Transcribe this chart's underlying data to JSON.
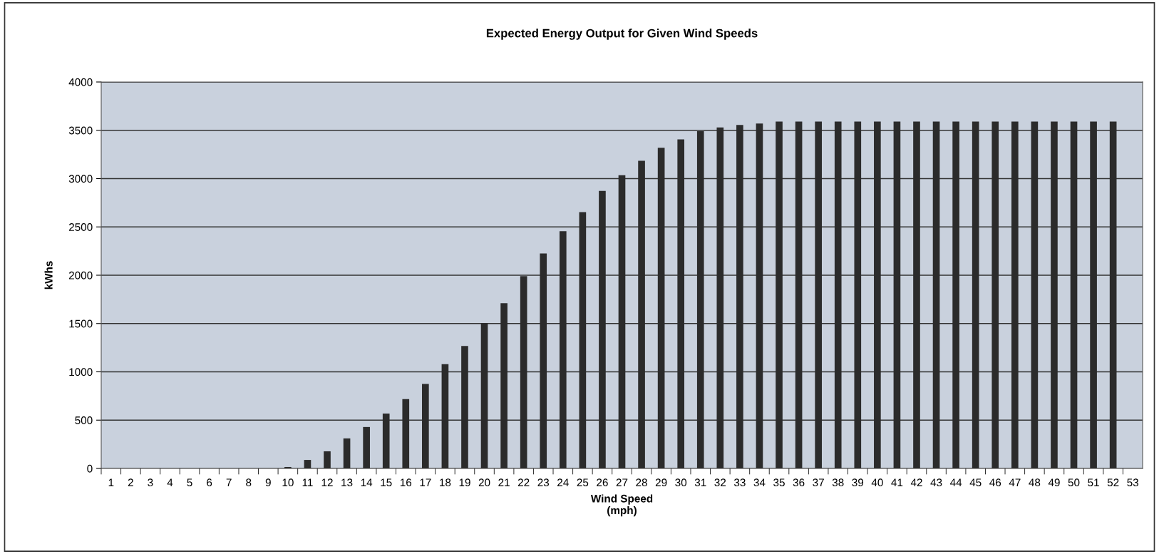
{
  "chart_data": {
    "type": "bar",
    "title": "Expected Energy Output for Given Wind Speeds",
    "xlabel": "Wind Speed\n(mph)",
    "ylabel": "kWhs",
    "categories": [
      "1",
      "2",
      "3",
      "4",
      "5",
      "6",
      "7",
      "8",
      "9",
      "10",
      "11",
      "12",
      "13",
      "14",
      "15",
      "16",
      "17",
      "18",
      "19",
      "20",
      "21",
      "22",
      "23",
      "24",
      "25",
      "26",
      "27",
      "28",
      "29",
      "30",
      "31",
      "32",
      "33",
      "34",
      "35",
      "36",
      "37",
      "38",
      "39",
      "40",
      "41",
      "42",
      "43",
      "44",
      "45",
      "46",
      "47",
      "48",
      "49",
      "50",
      "51",
      "52",
      "53"
    ],
    "values": [
      0,
      0,
      0,
      0,
      0,
      0,
      0,
      0,
      0,
      15,
      88,
      177,
      311,
      429,
      568,
      718,
      874,
      1080,
      1268,
      1504,
      1710,
      1990,
      2225,
      2455,
      2653,
      2873,
      3035,
      3185,
      3319,
      3406,
      3490,
      3530,
      3555,
      3570,
      3590,
      3590,
      3590,
      3590,
      3590,
      3590,
      3590,
      3590,
      3590,
      3590,
      3590,
      3590,
      3590,
      3590,
      3590,
      3590,
      3590,
      3590,
      0
    ],
    "color": "#2b2b2b",
    "ylim": [
      0,
      4000
    ],
    "yticks": [
      0,
      500,
      1000,
      1500,
      2000,
      2500,
      3000,
      3500,
      4000
    ],
    "grid": "y",
    "legend": false
  }
}
